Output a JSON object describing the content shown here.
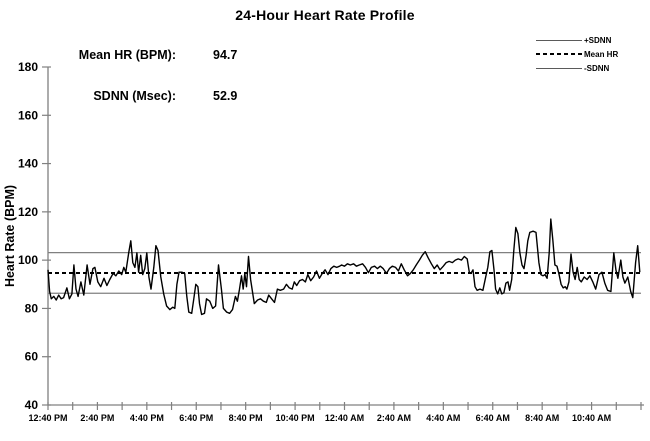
{
  "title": "24-Hour Heart Rate Profile",
  "stats": {
    "mean_hr_label": "Mean HR (BPM):",
    "mean_hr_value": "94.7",
    "sdnn_label": "SDNN (Msec):",
    "sdnn_value": "52.9"
  },
  "legend": {
    "items": [
      {
        "label": "+SDNN",
        "line": "solid"
      },
      {
        "label": "Mean HR",
        "line": "dashed"
      },
      {
        "label": "-SDNN",
        "line": "solid"
      }
    ]
  },
  "colors": {
    "series": "#000000",
    "reference_line": "#808080",
    "mean_line": "#000000",
    "axis": "#808080",
    "text": "#000000",
    "background": "#ffffff"
  },
  "chart_data": {
    "type": "line",
    "title": "24-Hour Heart Rate Profile",
    "xlabel": "",
    "ylabel": "Heart Rate (BPM)",
    "ylim": [
      40,
      180
    ],
    "y_tick_step": 20,
    "grid": "off",
    "legend_position": "top-right",
    "x_total_minutes": 1440,
    "x_start_label": "12:40 PM",
    "x_minor_tick_minutes": 60,
    "x_ticks": [
      {
        "minutes": 0,
        "label": "12:40 PM"
      },
      {
        "minutes": 120,
        "label": "2:40 PM"
      },
      {
        "minutes": 240,
        "label": "4:40 PM"
      },
      {
        "minutes": 360,
        "label": "6:40 PM"
      },
      {
        "minutes": 480,
        "label": "8:40 PM"
      },
      {
        "minutes": 600,
        "label": "10:40 PM"
      },
      {
        "minutes": 720,
        "label": "12:40 AM"
      },
      {
        "minutes": 840,
        "label": "2:40 AM"
      },
      {
        "minutes": 960,
        "label": "4:40 AM"
      },
      {
        "minutes": 1080,
        "label": "6:40 AM"
      },
      {
        "minutes": 1200,
        "label": "8:40 AM"
      },
      {
        "minutes": 1320,
        "label": "10:40 AM"
      }
    ],
    "mean_hr_bpm": 94.7,
    "sdnn_msec": 52.9,
    "reference_lines": {
      "plus_sdnn_bpm": 103.1,
      "mean_hr_bpm": 94.7,
      "minus_sdnn_bpm": 86.3
    },
    "series": [
      {
        "name": "Heart Rate",
        "points": [
          [
            0,
            96
          ],
          [
            4,
            87
          ],
          [
            8,
            84
          ],
          [
            14,
            85
          ],
          [
            20,
            83.5
          ],
          [
            26,
            85.5
          ],
          [
            32,
            84
          ],
          [
            38,
            84.5
          ],
          [
            46,
            88.5
          ],
          [
            52,
            84
          ],
          [
            58,
            86
          ],
          [
            63,
            98
          ],
          [
            68,
            88
          ],
          [
            73,
            85
          ],
          [
            80,
            91
          ],
          [
            87,
            85.5
          ],
          [
            95,
            98
          ],
          [
            102,
            90
          ],
          [
            109,
            96.5
          ],
          [
            114,
            97
          ],
          [
            121,
            91
          ],
          [
            128,
            89
          ],
          [
            136,
            92.5
          ],
          [
            143,
            89.5
          ],
          [
            150,
            92
          ],
          [
            158,
            94.5
          ],
          [
            165,
            93.5
          ],
          [
            172,
            95.5
          ],
          [
            179,
            94
          ],
          [
            184,
            97
          ],
          [
            189,
            95
          ],
          [
            196,
            103
          ],
          [
            201,
            108
          ],
          [
            206,
            99
          ],
          [
            211,
            97
          ],
          [
            216,
            103
          ],
          [
            220,
            95
          ],
          [
            225,
            102
          ],
          [
            230,
            94
          ],
          [
            235,
            96.5
          ],
          [
            240,
            103
          ],
          [
            245,
            93
          ],
          [
            250,
            88
          ],
          [
            257,
            97
          ],
          [
            262,
            106
          ],
          [
            267,
            104
          ],
          [
            274,
            93
          ],
          [
            281,
            86
          ],
          [
            288,
            81
          ],
          [
            296,
            79.5
          ],
          [
            303,
            80.5
          ],
          [
            308,
            80
          ],
          [
            313,
            90
          ],
          [
            318,
            95
          ],
          [
            325,
            95
          ],
          [
            332,
            94.5
          ],
          [
            337,
            85
          ],
          [
            342,
            78.5
          ],
          [
            349,
            78
          ],
          [
            354,
            84
          ],
          [
            359,
            90
          ],
          [
            364,
            89
          ],
          [
            368,
            82
          ],
          [
            373,
            77.5
          ],
          [
            380,
            78
          ],
          [
            385,
            84
          ],
          [
            393,
            83
          ],
          [
            400,
            80
          ],
          [
            407,
            81
          ],
          [
            414,
            98
          ],
          [
            421,
            88
          ],
          [
            426,
            80
          ],
          [
            434,
            78.5
          ],
          [
            441,
            78
          ],
          [
            448,
            79.5
          ],
          [
            455,
            85
          ],
          [
            460,
            83
          ],
          [
            465,
            88
          ],
          [
            470,
            93.5
          ],
          [
            474,
            88
          ],
          [
            478,
            94.5
          ],
          [
            482,
            89
          ],
          [
            487,
            101.5
          ],
          [
            492,
            92
          ],
          [
            501,
            82
          ],
          [
            509,
            83.5
          ],
          [
            516,
            84
          ],
          [
            523,
            83
          ],
          [
            530,
            82.5
          ],
          [
            536,
            85.5
          ],
          [
            543,
            84
          ],
          [
            550,
            82.5
          ],
          [
            557,
            88
          ],
          [
            564,
            87.5
          ],
          [
            572,
            88
          ],
          [
            579,
            90
          ],
          [
            586,
            88.5
          ],
          [
            593,
            88
          ],
          [
            598,
            91
          ],
          [
            604,
            89.5
          ],
          [
            611,
            91.5
          ],
          [
            618,
            92
          ],
          [
            625,
            91
          ],
          [
            631,
            94
          ],
          [
            638,
            91.5
          ],
          [
            645,
            93
          ],
          [
            652,
            95.5
          ],
          [
            659,
            92.5
          ],
          [
            666,
            94.5
          ],
          [
            673,
            96
          ],
          [
            680,
            94
          ],
          [
            687,
            96.5
          ],
          [
            694,
            97.5
          ],
          [
            701,
            97
          ],
          [
            708,
            97.5
          ],
          [
            713,
            98
          ],
          [
            720,
            97.5
          ],
          [
            727,
            98.5
          ],
          [
            734,
            98
          ],
          [
            742,
            98.5
          ],
          [
            749,
            97.5
          ],
          [
            756,
            98
          ],
          [
            764,
            98.5
          ],
          [
            771,
            97
          ],
          [
            778,
            94.8
          ],
          [
            785,
            97
          ],
          [
            793,
            97.5
          ],
          [
            800,
            96.5
          ],
          [
            807,
            97.5
          ],
          [
            814,
            96.5
          ],
          [
            822,
            94.5
          ],
          [
            829,
            96.5
          ],
          [
            836,
            97.5
          ],
          [
            844,
            97
          ],
          [
            851,
            95.5
          ],
          [
            858,
            98.5
          ],
          [
            865,
            96
          ],
          [
            873,
            93.5
          ],
          [
            880,
            94.5
          ],
          [
            887,
            96
          ],
          [
            894,
            98
          ],
          [
            902,
            100
          ],
          [
            909,
            102
          ],
          [
            916,
            103.5
          ],
          [
            923,
            101
          ],
          [
            931,
            98.5
          ],
          [
            938,
            96.5
          ],
          [
            945,
            98
          ],
          [
            952,
            96
          ],
          [
            960,
            97.5
          ],
          [
            967,
            99
          ],
          [
            974,
            99.5
          ],
          [
            982,
            99
          ],
          [
            989,
            100
          ],
          [
            996,
            100.5
          ],
          [
            1004,
            100
          ],
          [
            1011,
            101.5
          ],
          [
            1018,
            100.5
          ],
          [
            1023,
            95
          ],
          [
            1027,
            94.5
          ],
          [
            1032,
            96
          ],
          [
            1037,
            89
          ],
          [
            1042,
            87.5
          ],
          [
            1049,
            88
          ],
          [
            1056,
            87.5
          ],
          [
            1063,
            93
          ],
          [
            1068,
            97
          ],
          [
            1073,
            103.5
          ],
          [
            1078,
            104
          ],
          [
            1083,
            96
          ],
          [
            1087,
            88
          ],
          [
            1092,
            86
          ],
          [
            1097,
            88.5
          ],
          [
            1102,
            86
          ],
          [
            1107,
            86.5
          ],
          [
            1112,
            90.5
          ],
          [
            1117,
            91
          ],
          [
            1121,
            87.5
          ],
          [
            1126,
            92
          ],
          [
            1131,
            104
          ],
          [
            1136,
            113.5
          ],
          [
            1141,
            111
          ],
          [
            1146,
            103
          ],
          [
            1151,
            98
          ],
          [
            1156,
            96.5
          ],
          [
            1161,
            102
          ],
          [
            1165,
            108
          ],
          [
            1170,
            111.5
          ],
          [
            1178,
            112
          ],
          [
            1185,
            111.5
          ],
          [
            1192,
            99
          ],
          [
            1197,
            94
          ],
          [
            1202,
            93.5
          ],
          [
            1207,
            94
          ],
          [
            1212,
            92.5
          ],
          [
            1217,
            103
          ],
          [
            1221,
            117
          ],
          [
            1226,
            108
          ],
          [
            1231,
            98
          ],
          [
            1236,
            97.5
          ],
          [
            1241,
            94
          ],
          [
            1246,
            90
          ],
          [
            1251,
            88.5
          ],
          [
            1256,
            89
          ],
          [
            1260,
            88
          ],
          [
            1265,
            91
          ],
          [
            1270,
            102.5
          ],
          [
            1275,
            95
          ],
          [
            1280,
            92
          ],
          [
            1285,
            97
          ],
          [
            1290,
            92
          ],
          [
            1295,
            91
          ],
          [
            1302,
            93
          ],
          [
            1309,
            92
          ],
          [
            1316,
            93.5
          ],
          [
            1323,
            91
          ],
          [
            1330,
            88
          ],
          [
            1338,
            94
          ],
          [
            1345,
            95
          ],
          [
            1352,
            90.5
          ],
          [
            1359,
            87.5
          ],
          [
            1367,
            87
          ],
          [
            1374,
            103
          ],
          [
            1379,
            96
          ],
          [
            1384,
            92.5
          ],
          [
            1391,
            100
          ],
          [
            1396,
            93
          ],
          [
            1401,
            90.5
          ],
          [
            1408,
            93
          ],
          [
            1415,
            87
          ],
          [
            1420,
            84.5
          ],
          [
            1427,
            99
          ],
          [
            1432,
            106
          ],
          [
            1437,
            95
          ]
        ]
      }
    ]
  }
}
